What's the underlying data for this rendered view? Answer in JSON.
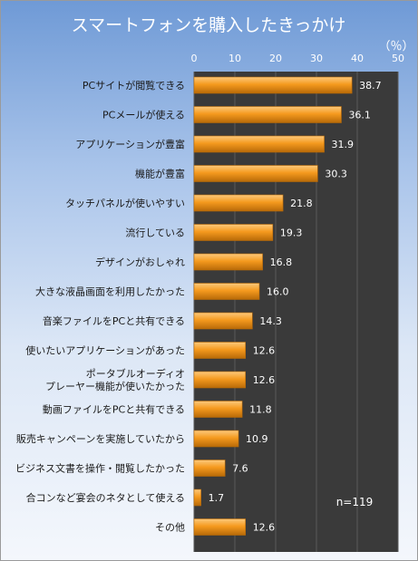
{
  "chart_data": {
    "type": "bar",
    "orientation": "horizontal",
    "title": "スマートフォンを購入したきっかけ",
    "unit_label": "（％）",
    "annotation": "n=119",
    "xlim": [
      0,
      50
    ],
    "xticks": [
      0,
      10,
      20,
      30,
      40,
      50
    ],
    "grid": true,
    "categories": [
      "PCサイトが閲覧できる",
      "PCメールが使える",
      "アプリケーションが豊富",
      "機能が豊富",
      "タッチパネルが使いやすい",
      "流行している",
      "デザインがおしゃれ",
      "大きな液晶画面を利用したかった",
      "音楽ファイルをPCと共有できる",
      "使いたいアプリケーションがあった",
      "ポータブルオーディオ\nプレーヤー機能が使いたかった",
      "動画ファイルをPCと共有できる",
      "販売キャンペーンを実施していたから",
      "ビジネス文書を操作・閲覧したかった",
      "合コンなど宴会のネタとして使える",
      "その他"
    ],
    "values": [
      38.7,
      36.1,
      31.9,
      30.3,
      21.8,
      19.3,
      16.8,
      16.0,
      14.3,
      12.6,
      12.6,
      11.8,
      10.9,
      7.6,
      1.7,
      12.6
    ],
    "value_labels": [
      "38.7",
      "36.1",
      "31.9",
      "30.3",
      "21.8",
      "19.3",
      "16.8",
      "16.0",
      "14.3",
      "12.6",
      "12.6",
      "11.8",
      "10.9",
      "7.6",
      "1.7",
      "12.6"
    ],
    "colors": {
      "bar": "#f59a1e",
      "bar_highlight": "#fcc97c",
      "bar_shadow": "#b86a08",
      "plot_bg": "#3a3a3a",
      "gridline": "#5a5a5a",
      "title_text": "#ffffff",
      "tick_text": "#ffffff",
      "value_text": "#ffffff"
    }
  }
}
